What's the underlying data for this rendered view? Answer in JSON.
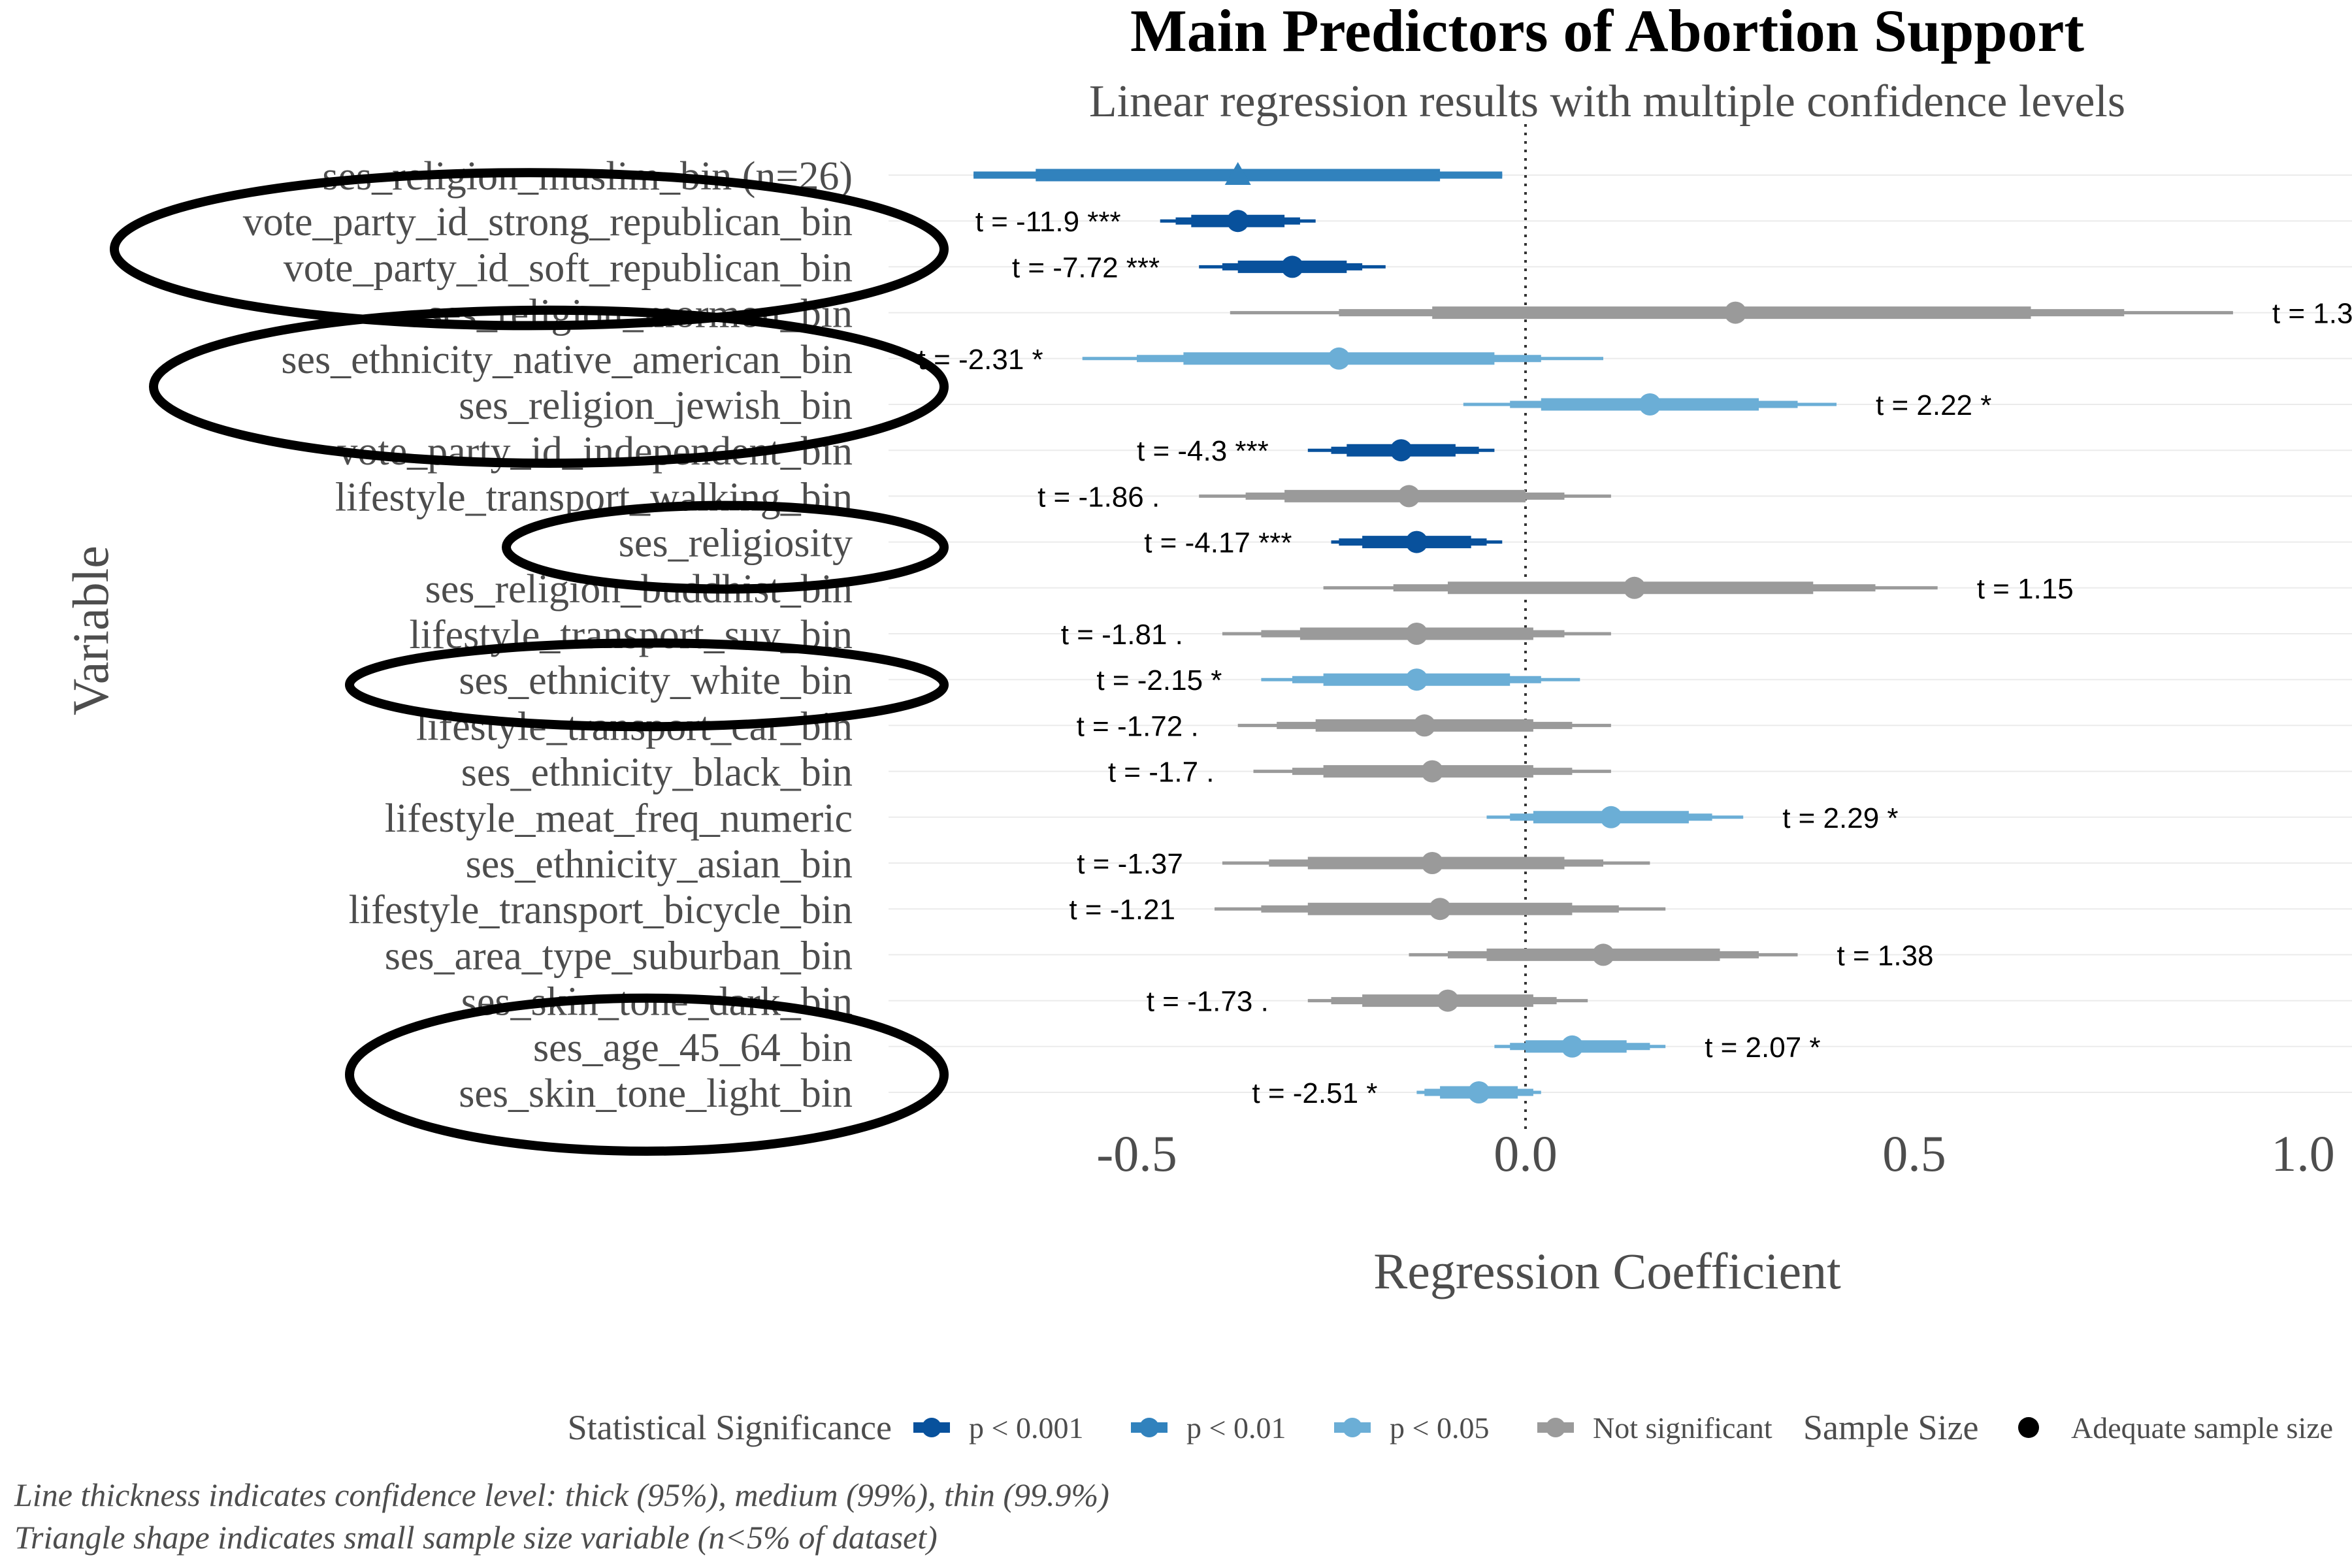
{
  "chart_data": {
    "type": "forest",
    "title": "Main Predictors of Abortion Support",
    "subtitle": "Linear regression results with multiple confidence levels",
    "xlabel": "Regression Coefficient",
    "ylabel": "Variable",
    "xlim": [
      -0.9,
      1.05
    ],
    "x_ticks": [
      -0.5,
      0.0,
      0.5,
      1.0
    ],
    "x_tick_labels": [
      "-0.5",
      "0.0",
      "0.5",
      "1.0"
    ],
    "reference_line": 0,
    "grid": "horizontal-major",
    "colors": {
      "p < 0.001": "#08519c",
      "p < 0.01": "#3182bd",
      "p < 0.05": "#6baed6",
      "Not significant": "#9a9a9a",
      "highlight_ellipse": "#000000"
    },
    "variables": [
      {
        "name": "ses_religion_muslim_bin (n=26)",
        "estimate": -0.37,
        "ci95": [
          -0.63,
          -0.11
        ],
        "ci99": [
          -0.71,
          -0.03
        ],
        "ci999": [
          -0.71,
          -0.03
        ],
        "significance": "p < 0.01",
        "t_label": "",
        "small_sample": true,
        "circled": false
      },
      {
        "name": "vote_party_id_strong_republican_bin",
        "estimate": -0.37,
        "ci95": [
          -0.43,
          -0.31
        ],
        "ci99": [
          -0.45,
          -0.29
        ],
        "ci999": [
          -0.47,
          -0.27
        ],
        "significance": "p < 0.001",
        "t_label": "t = -11.9 ***",
        "small_sample": false,
        "circled": true
      },
      {
        "name": "vote_party_id_soft_republican_bin",
        "estimate": -0.3,
        "ci95": [
          -0.37,
          -0.23
        ],
        "ci99": [
          -0.39,
          -0.21
        ],
        "ci999": [
          -0.42,
          -0.18
        ],
        "significance": "p < 0.001",
        "t_label": "t = -7.72 ***",
        "small_sample": false,
        "circled": true
      },
      {
        "name": "ses_religion_mormon_bin",
        "estimate": 0.27,
        "ci95": [
          -0.12,
          0.65
        ],
        "ci99": [
          -0.24,
          0.77
        ],
        "ci999": [
          -0.38,
          0.91
        ],
        "significance": "Not significant",
        "t_label": "t = 1.3",
        "small_sample": false,
        "circled": false
      },
      {
        "name": "ses_ethnicity_native_american_bin",
        "estimate": -0.24,
        "ci95": [
          -0.44,
          -0.04
        ],
        "ci99": [
          -0.5,
          0.02
        ],
        "ci999": [
          -0.57,
          0.1
        ],
        "significance": "p < 0.05",
        "t_label": "t = -2.31 *",
        "small_sample": false,
        "circled": true
      },
      {
        "name": "ses_religion_jewish_bin",
        "estimate": 0.16,
        "ci95": [
          0.02,
          0.3
        ],
        "ci99": [
          -0.02,
          0.35
        ],
        "ci999": [
          -0.08,
          0.4
        ],
        "significance": "p < 0.05",
        "t_label": "t = 2.22 *",
        "small_sample": false,
        "circled": true
      },
      {
        "name": "vote_party_id_independent_bin",
        "estimate": -0.16,
        "ci95": [
          -0.23,
          -0.09
        ],
        "ci99": [
          -0.25,
          -0.06
        ],
        "ci999": [
          -0.28,
          -0.04
        ],
        "significance": "p < 0.001",
        "t_label": "t = -4.3 ***",
        "small_sample": false,
        "circled": false
      },
      {
        "name": "lifestyle_transport_walking_bin",
        "estimate": -0.15,
        "ci95": [
          -0.31,
          0.0
        ],
        "ci99": [
          -0.36,
          0.05
        ],
        "ci999": [
          -0.42,
          0.11
        ],
        "significance": "Not significant",
        "t_label": "t = -1.86 .",
        "small_sample": false,
        "circled": false
      },
      {
        "name": "ses_religiosity",
        "estimate": -0.14,
        "ci95": [
          -0.21,
          -0.07
        ],
        "ci99": [
          -0.24,
          -0.05
        ],
        "ci999": [
          -0.25,
          -0.03
        ],
        "significance": "p < 0.001",
        "t_label": "t = -4.17 ***",
        "small_sample": false,
        "circled": true
      },
      {
        "name": "ses_religion_buddhist_bin",
        "estimate": 0.14,
        "ci95": [
          -0.1,
          0.37
        ],
        "ci99": [
          -0.17,
          0.45
        ],
        "ci999": [
          -0.26,
          0.53
        ],
        "significance": "Not significant",
        "t_label": "t = 1.15",
        "small_sample": false,
        "circled": false
      },
      {
        "name": "lifestyle_transport_suv_bin",
        "estimate": -0.14,
        "ci95": [
          -0.29,
          0.01
        ],
        "ci99": [
          -0.34,
          0.05
        ],
        "ci999": [
          -0.39,
          0.11
        ],
        "significance": "Not significant",
        "t_label": "t = -1.81 .",
        "small_sample": false,
        "circled": false
      },
      {
        "name": "ses_ethnicity_white_bin",
        "estimate": -0.14,
        "ci95": [
          -0.26,
          -0.02
        ],
        "ci99": [
          -0.3,
          0.02
        ],
        "ci999": [
          -0.34,
          0.07
        ],
        "significance": "p < 0.05",
        "t_label": "t = -2.15 *",
        "small_sample": false,
        "circled": true
      },
      {
        "name": "lifestyle_transport_car_bin",
        "estimate": -0.13,
        "ci95": [
          -0.27,
          0.01
        ],
        "ci99": [
          -0.32,
          0.06
        ],
        "ci999": [
          -0.37,
          0.11
        ],
        "significance": "Not significant",
        "t_label": "t = -1.72 .",
        "small_sample": false,
        "circled": false
      },
      {
        "name": "ses_ethnicity_black_bin",
        "estimate": -0.12,
        "ci95": [
          -0.26,
          0.01
        ],
        "ci99": [
          -0.3,
          0.06
        ],
        "ci999": [
          -0.35,
          0.11
        ],
        "significance": "Not significant",
        "t_label": "t = -1.7 .",
        "small_sample": false,
        "circled": false
      },
      {
        "name": "lifestyle_meat_freq_numeric",
        "estimate": 0.11,
        "ci95": [
          0.01,
          0.21
        ],
        "ci99": [
          -0.02,
          0.24
        ],
        "ci999": [
          -0.05,
          0.28
        ],
        "significance": "p < 0.05",
        "t_label": "t = 2.29 *",
        "small_sample": false,
        "circled": false
      },
      {
        "name": "ses_ethnicity_asian_bin",
        "estimate": -0.12,
        "ci95": [
          -0.28,
          0.05
        ],
        "ci99": [
          -0.33,
          0.1
        ],
        "ci999": [
          -0.39,
          0.16
        ],
        "significance": "Not significant",
        "t_label": "t = -1.37",
        "small_sample": false,
        "circled": false
      },
      {
        "name": "lifestyle_transport_bicycle_bin",
        "estimate": -0.11,
        "ci95": [
          -0.28,
          0.06
        ],
        "ci99": [
          -0.34,
          0.12
        ],
        "ci999": [
          -0.4,
          0.18
        ],
        "significance": "Not significant",
        "t_label": "t = -1.21",
        "small_sample": false,
        "circled": false
      },
      {
        "name": "ses_area_type_suburban_bin",
        "estimate": 0.1,
        "ci95": [
          -0.05,
          0.25
        ],
        "ci99": [
          -0.1,
          0.3
        ],
        "ci999": [
          -0.15,
          0.35
        ],
        "significance": "Not significant",
        "t_label": "t = 1.38",
        "small_sample": false,
        "circled": false
      },
      {
        "name": "ses_skin_tone_dark_bin",
        "estimate": -0.1,
        "ci95": [
          -0.21,
          0.01
        ],
        "ci99": [
          -0.25,
          0.04
        ],
        "ci999": [
          -0.28,
          0.08
        ],
        "significance": "Not significant",
        "t_label": "t = -1.73 .",
        "small_sample": false,
        "circled": false
      },
      {
        "name": "ses_age_45_64_bin",
        "estimate": 0.06,
        "ci95": [
          0.0,
          0.13
        ],
        "ci99": [
          -0.02,
          0.16
        ],
        "ci999": [
          -0.04,
          0.18
        ],
        "significance": "p < 0.05",
        "t_label": "t = 2.07 *",
        "small_sample": false,
        "circled": true
      },
      {
        "name": "ses_skin_tone_light_bin",
        "estimate": -0.06,
        "ci95": [
          -0.11,
          -0.01
        ],
        "ci99": [
          -0.13,
          0.01
        ],
        "ci999": [
          -0.14,
          0.02
        ],
        "significance": "p < 0.05",
        "t_label": "t = -2.51 *",
        "small_sample": false,
        "circled": true
      }
    ],
    "legend": {
      "position": "bottom",
      "significance_title": "Statistical Significance",
      "significance_items": [
        "p < 0.001",
        "p < 0.01",
        "p < 0.05",
        "Not significant"
      ],
      "sample_title": "Sample Size",
      "sample_items": [
        "Adequate sample size"
      ]
    },
    "notes": [
      "Line thickness indicates confidence level: thick (95%), medium (99%), thin (99.9%)",
      "Triangle shape indicates small sample size variable (n<5% of dataset)"
    ]
  }
}
